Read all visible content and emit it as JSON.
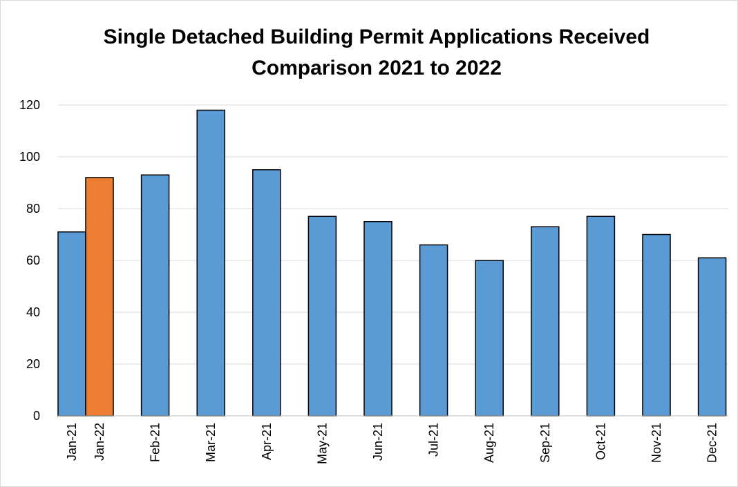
{
  "chart_data": {
    "type": "bar",
    "title": [
      "Single Detached Building Permit Applications Received",
      "Comparison 2021 to 2022"
    ],
    "categories": [
      "Jan-21",
      "Jan-22",
      "Feb-21",
      "Mar-21",
      "Apr-21",
      "May-21",
      "Jun-21",
      "Jul-21",
      "Aug-21",
      "Sep-21",
      "Oct-21",
      "Nov-21",
      "Dec-21"
    ],
    "values": [
      71,
      92,
      93,
      118,
      95,
      77,
      75,
      66,
      60,
      73,
      77,
      70,
      61
    ],
    "colors": [
      "#5b9bd5",
      "#ed7d31",
      "#5b9bd5",
      "#5b9bd5",
      "#5b9bd5",
      "#5b9bd5",
      "#5b9bd5",
      "#5b9bd5",
      "#5b9bd5",
      "#5b9bd5",
      "#5b9bd5",
      "#5b9bd5",
      "#5b9bd5"
    ],
    "ylim": [
      0,
      120
    ],
    "yticks": [
      0,
      20,
      40,
      60,
      80,
      100,
      120
    ],
    "grid": true
  }
}
